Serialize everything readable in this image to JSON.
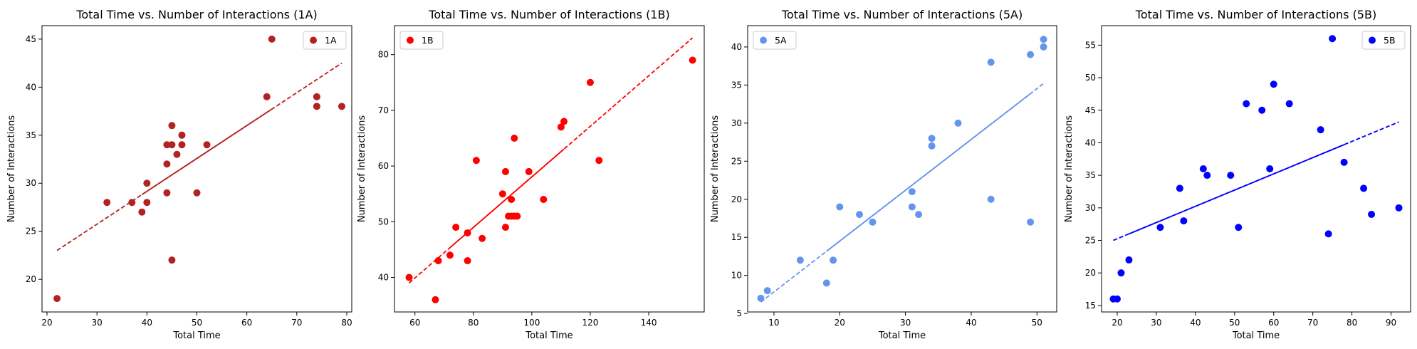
{
  "chart_data": [
    {
      "type": "scatter",
      "title": "Total Time vs. Number of Interactions (1A)",
      "xlabel": "Total Time",
      "ylabel": "Number of Interactions",
      "xlim": [
        19,
        81
      ],
      "ylim": [
        16.6,
        46.4
      ],
      "xticks": [
        20,
        30,
        40,
        50,
        60,
        70,
        80
      ],
      "yticks": [
        20,
        25,
        30,
        35,
        40,
        45
      ],
      "color": "#b22222",
      "legend": "1A",
      "legend_loc": "upper right",
      "fit_line": {
        "x": [
          22,
          79
        ],
        "y": [
          23.0,
          42.5
        ]
      },
      "points": {
        "x": [
          22,
          32,
          37,
          39,
          40,
          40,
          44,
          44,
          44,
          45,
          45,
          45,
          46,
          47,
          47,
          50,
          52,
          64,
          65,
          74,
          74,
          79
        ],
        "y": [
          18,
          28,
          28,
          27,
          30,
          28,
          29,
          32,
          34,
          36,
          22,
          34,
          33,
          35,
          34,
          29,
          34,
          39,
          45,
          38,
          39,
          38
        ]
      }
    },
    {
      "type": "scatter",
      "title": "Total Time vs. Number of Interactions (1B)",
      "xlabel": "Total Time",
      "ylabel": "Number of Interactions",
      "xlim": [
        53,
        159
      ],
      "ylim": [
        33.8,
        85.2
      ],
      "xticks": [
        60,
        80,
        100,
        120,
        140
      ],
      "yticks": [
        40,
        50,
        60,
        70,
        80
      ],
      "color": "#ff0000",
      "legend": "1B",
      "legend_loc": "upper left",
      "fit_line": {
        "x": [
          58,
          155
        ],
        "y": [
          39.0,
          83.0
        ]
      },
      "points": {
        "x": [
          58,
          67,
          68,
          72,
          74,
          78,
          78,
          81,
          83,
          90,
          91,
          91,
          92,
          93,
          93,
          94,
          94,
          95,
          99,
          104,
          110,
          111,
          120,
          123,
          155
        ],
        "y": [
          40,
          36,
          43,
          44,
          49,
          48,
          43,
          61,
          47,
          55,
          59,
          49,
          51,
          54,
          51,
          51,
          65,
          51,
          59,
          54,
          67,
          68,
          75,
          61,
          79
        ]
      }
    },
    {
      "type": "scatter",
      "title": "Total Time vs. Number of Interactions (5A)",
      "xlabel": "Total Time",
      "ylabel": "Number of Interactions",
      "xlim": [
        6,
        53
      ],
      "ylim": [
        5.2,
        42.8
      ],
      "xticks": [
        10,
        20,
        30,
        40,
        50
      ],
      "yticks": [
        5,
        10,
        15,
        20,
        25,
        30,
        35,
        40
      ],
      "color": "#6495ed",
      "legend": "5A",
      "legend_loc": "upper left",
      "fit_line": {
        "x": [
          8,
          51
        ],
        "y": [
          6.5,
          35.2
        ]
      },
      "points": {
        "x": [
          8,
          9,
          14,
          18,
          19,
          20,
          23,
          25,
          31,
          31,
          32,
          34,
          34,
          38,
          43,
          43,
          49,
          49,
          51,
          51
        ],
        "y": [
          7,
          8,
          12,
          9,
          12,
          19,
          18,
          17,
          21,
          19,
          18,
          27,
          28,
          30,
          38,
          20,
          39,
          17,
          41,
          40
        ]
      }
    },
    {
      "type": "scatter",
      "title": "Total Time vs. Number of Interactions (5B)",
      "xlabel": "Total Time",
      "ylabel": "Number of Interactions",
      "xlim": [
        16,
        95
      ],
      "ylim": [
        14,
        58
      ],
      "xticks": [
        20,
        30,
        40,
        50,
        60,
        70,
        80,
        90
      ],
      "yticks": [
        15,
        20,
        25,
        30,
        35,
        40,
        45,
        50,
        55
      ],
      "color": "#0000ff",
      "legend": "5B",
      "legend_loc": "upper right",
      "fit_line": {
        "x": [
          19,
          92
        ],
        "y": [
          25.0,
          43.2
        ]
      },
      "points": {
        "x": [
          19,
          20,
          21,
          23,
          31,
          36,
          37,
          42,
          43,
          49,
          51,
          53,
          57,
          59,
          60,
          64,
          72,
          74,
          75,
          78,
          83,
          85,
          92
        ],
        "y": [
          16,
          16,
          20,
          22,
          27,
          33,
          28,
          36,
          35,
          35,
          27,
          46,
          45,
          36,
          49,
          46,
          42,
          26,
          56,
          37,
          33,
          29,
          30
        ]
      }
    }
  ]
}
